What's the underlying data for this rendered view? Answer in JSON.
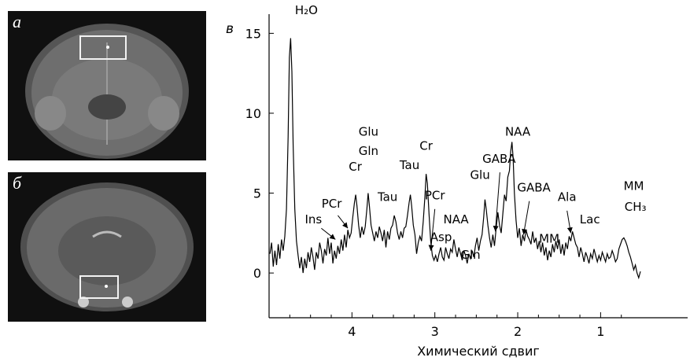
{
  "panels": {
    "a": {
      "letter": "а"
    },
    "b": {
      "letter": "б"
    }
  },
  "chart_data": {
    "type": "line",
    "panel_letter": "в",
    "xlabel": "Химический сдвиг",
    "ylabel": "",
    "x_reversed": true,
    "xlim": [
      5.0,
      -0.05
    ],
    "ylim": [
      -2.8,
      16.2
    ],
    "x_ticks": [
      4,
      3,
      2,
      1
    ],
    "y_ticks": [
      0,
      5,
      10,
      15
    ],
    "grid": false,
    "series": [
      {
        "color": "#000000",
        "points": [
          [
            4.99,
            1.2
          ],
          [
            4.97,
            1.9
          ],
          [
            4.95,
            0.4
          ],
          [
            4.93,
            1.4
          ],
          [
            4.91,
            0.5
          ],
          [
            4.89,
            1.8
          ],
          [
            4.87,
            0.9
          ],
          [
            4.85,
            2.1
          ],
          [
            4.83,
            1.4
          ],
          [
            4.81,
            2.3
          ],
          [
            4.79,
            4.0
          ],
          [
            4.77,
            8.5
          ],
          [
            4.755,
            13.5
          ],
          [
            4.74,
            14.7
          ],
          [
            4.725,
            12.6
          ],
          [
            4.71,
            8.0
          ],
          [
            4.69,
            4.0
          ],
          [
            4.67,
            2.0
          ],
          [
            4.65,
            1.1
          ],
          [
            4.63,
            0.3
          ],
          [
            4.61,
            1.0
          ],
          [
            4.59,
            0.0
          ],
          [
            4.57,
            0.9
          ],
          [
            4.55,
            0.3
          ],
          [
            4.53,
            1.3
          ],
          [
            4.51,
            0.7
          ],
          [
            4.49,
            1.6
          ],
          [
            4.47,
            1.0
          ],
          [
            4.45,
            0.2
          ],
          [
            4.43,
            1.3
          ],
          [
            4.41,
            0.9
          ],
          [
            4.39,
            1.9
          ],
          [
            4.37,
            1.4
          ],
          [
            4.35,
            0.6
          ],
          [
            4.33,
            1.5
          ],
          [
            4.31,
            1.1
          ],
          [
            4.29,
            2.2
          ],
          [
            4.27,
            1.2
          ],
          [
            4.25,
            1.9
          ],
          [
            4.23,
            0.6
          ],
          [
            4.21,
            1.4
          ],
          [
            4.19,
            0.9
          ],
          [
            4.17,
            1.7
          ],
          [
            4.15,
            1.2
          ],
          [
            4.13,
            2.1
          ],
          [
            4.11,
            1.4
          ],
          [
            4.09,
            2.4
          ],
          [
            4.07,
            1.6
          ],
          [
            4.05,
            2.7
          ],
          [
            4.03,
            2.2
          ],
          [
            4.01,
            2.5
          ],
          [
            3.99,
            3.5
          ],
          [
            3.97,
            4.4
          ],
          [
            3.955,
            4.9
          ],
          [
            3.94,
            4.2
          ],
          [
            3.92,
            3.0
          ],
          [
            3.9,
            2.2
          ],
          [
            3.88,
            2.9
          ],
          [
            3.86,
            2.4
          ],
          [
            3.84,
            2.9
          ],
          [
            3.82,
            4.0
          ],
          [
            3.805,
            5.0
          ],
          [
            3.79,
            4.2
          ],
          [
            3.77,
            3.0
          ],
          [
            3.75,
            2.5
          ],
          [
            3.73,
            2.0
          ],
          [
            3.71,
            2.6
          ],
          [
            3.69,
            2.2
          ],
          [
            3.67,
            2.9
          ],
          [
            3.65,
            2.5
          ],
          [
            3.63,
            2.0
          ],
          [
            3.61,
            2.7
          ],
          [
            3.59,
            1.6
          ],
          [
            3.57,
            2.6
          ],
          [
            3.55,
            2.1
          ],
          [
            3.53,
            2.8
          ],
          [
            3.51,
            3.0
          ],
          [
            3.49,
            3.6
          ],
          [
            3.47,
            3.2
          ],
          [
            3.45,
            2.5
          ],
          [
            3.43,
            2.1
          ],
          [
            3.41,
            2.6
          ],
          [
            3.39,
            2.2
          ],
          [
            3.37,
            2.8
          ],
          [
            3.35,
            2.9
          ],
          [
            3.33,
            3.6
          ],
          [
            3.31,
            4.4
          ],
          [
            3.295,
            4.9
          ],
          [
            3.28,
            4.2
          ],
          [
            3.26,
            3.0
          ],
          [
            3.24,
            2.4
          ],
          [
            3.22,
            1.2
          ],
          [
            3.2,
            1.9
          ],
          [
            3.18,
            2.3
          ],
          [
            3.16,
            2.0
          ],
          [
            3.14,
            3.2
          ],
          [
            3.12,
            4.8
          ],
          [
            3.105,
            6.2
          ],
          [
            3.09,
            5.6
          ],
          [
            3.07,
            3.7
          ],
          [
            3.05,
            2.0
          ],
          [
            3.03,
            1.1
          ],
          [
            3.01,
            0.8
          ],
          [
            2.99,
            1.1
          ],
          [
            2.97,
            0.7
          ],
          [
            2.95,
            1.2
          ],
          [
            2.93,
            1.6
          ],
          [
            2.91,
            1.0
          ],
          [
            2.89,
            0.8
          ],
          [
            2.87,
            1.6
          ],
          [
            2.85,
            1.2
          ],
          [
            2.83,
            0.9
          ],
          [
            2.81,
            1.5
          ],
          [
            2.79,
            1.3
          ],
          [
            2.77,
            2.1
          ],
          [
            2.75,
            1.5
          ],
          [
            2.73,
            1.0
          ],
          [
            2.71,
            1.6
          ],
          [
            2.69,
            1.2
          ],
          [
            2.67,
            0.8
          ],
          [
            2.65,
            1.4
          ],
          [
            2.63,
            1.1
          ],
          [
            2.61,
            0.6
          ],
          [
            2.59,
            1.2
          ],
          [
            2.57,
            0.9
          ],
          [
            2.55,
            1.4
          ],
          [
            2.53,
            1.0
          ],
          [
            2.51,
            1.7
          ],
          [
            2.49,
            2.2
          ],
          [
            2.47,
            1.4
          ],
          [
            2.45,
            2.0
          ],
          [
            2.43,
            2.4
          ],
          [
            2.41,
            3.5
          ],
          [
            2.395,
            4.6
          ],
          [
            2.38,
            4.0
          ],
          [
            2.36,
            3.0
          ],
          [
            2.34,
            2.2
          ],
          [
            2.32,
            1.6
          ],
          [
            2.3,
            2.4
          ],
          [
            2.28,
            1.7
          ],
          [
            2.26,
            2.8
          ],
          [
            2.24,
            3.8
          ],
          [
            2.22,
            3.0
          ],
          [
            2.2,
            2.5
          ],
          [
            2.18,
            3.7
          ],
          [
            2.16,
            4.9
          ],
          [
            2.14,
            4.5
          ],
          [
            2.12,
            6.0
          ],
          [
            2.1,
            6.4
          ],
          [
            2.085,
            7.6
          ],
          [
            2.07,
            8.2
          ],
          [
            2.055,
            7.2
          ],
          [
            2.04,
            5.0
          ],
          [
            2.02,
            3.3
          ],
          [
            2.0,
            2.2
          ],
          [
            1.98,
            2.8
          ],
          [
            1.96,
            1.7
          ],
          [
            1.94,
            2.4
          ],
          [
            1.92,
            2.0
          ],
          [
            1.9,
            2.7
          ],
          [
            1.88,
            2.3
          ],
          [
            1.86,
            2.1
          ],
          [
            1.84,
            1.8
          ],
          [
            1.82,
            2.6
          ],
          [
            1.8,
            1.9
          ],
          [
            1.78,
            2.2
          ],
          [
            1.76,
            1.5
          ],
          [
            1.74,
            2.0
          ],
          [
            1.72,
            1.3
          ],
          [
            1.7,
            1.9
          ],
          [
            1.68,
            1.1
          ],
          [
            1.66,
            1.6
          ],
          [
            1.64,
            0.8
          ],
          [
            1.62,
            1.4
          ],
          [
            1.6,
            1.0
          ],
          [
            1.58,
            1.8
          ],
          [
            1.56,
            1.3
          ],
          [
            1.54,
            2.0
          ],
          [
            1.52,
            1.5
          ],
          [
            1.5,
            2.1
          ],
          [
            1.48,
            1.2
          ],
          [
            1.46,
            1.8
          ],
          [
            1.44,
            1.1
          ],
          [
            1.42,
            1.9
          ],
          [
            1.4,
            1.5
          ],
          [
            1.38,
            2.3
          ],
          [
            1.36,
            2.0
          ],
          [
            1.34,
            2.6
          ],
          [
            1.32,
            2.2
          ],
          [
            1.3,
            1.8
          ],
          [
            1.28,
            1.6
          ],
          [
            1.26,
            1.0
          ],
          [
            1.24,
            1.6
          ],
          [
            1.22,
            1.2
          ],
          [
            1.2,
            0.7
          ],
          [
            1.18,
            1.3
          ],
          [
            1.16,
            1.0
          ],
          [
            1.14,
            0.6
          ],
          [
            1.12,
            1.2
          ],
          [
            1.1,
            0.9
          ],
          [
            1.08,
            1.5
          ],
          [
            1.06,
            1.1
          ],
          [
            1.04,
            0.7
          ],
          [
            1.02,
            1.1
          ],
          [
            1.0,
            0.8
          ],
          [
            0.98,
            1.3
          ],
          [
            0.96,
            1.0
          ],
          [
            0.94,
            0.7
          ],
          [
            0.92,
            1.2
          ],
          [
            0.9,
            0.9
          ],
          [
            0.88,
            1.0
          ],
          [
            0.86,
            1.4
          ],
          [
            0.84,
            1.1
          ],
          [
            0.82,
            0.7
          ],
          [
            0.8,
            0.9
          ],
          [
            0.78,
            1.5
          ],
          [
            0.76,
            1.8
          ],
          [
            0.74,
            2.1
          ],
          [
            0.72,
            2.2
          ],
          [
            0.7,
            2.0
          ],
          [
            0.68,
            1.7
          ],
          [
            0.66,
            1.3
          ],
          [
            0.64,
            1.0
          ],
          [
            0.62,
            0.6
          ],
          [
            0.6,
            0.2
          ],
          [
            0.58,
            0.5
          ],
          [
            0.56,
            0.0
          ],
          [
            0.54,
            -0.3
          ],
          [
            0.52,
            0.1
          ]
        ]
      }
    ],
    "annotations": [
      {
        "label": "H₂O",
        "pos": [
          4.55,
          16.2
        ]
      },
      {
        "label": "Cr",
        "pos": [
          3.96,
          6.4
        ]
      },
      {
        "label": "Glu",
        "pos": [
          3.8,
          8.6
        ]
      },
      {
        "label": "Gln",
        "pos": [
          3.8,
          7.4
        ]
      },
      {
        "label": "Tau",
        "pos": [
          3.57,
          4.5
        ]
      },
      {
        "label": "Tau",
        "pos": [
          3.305,
          6.5
        ]
      },
      {
        "label": "Cr",
        "pos": [
          3.105,
          7.7
        ]
      },
      {
        "label": "Ins",
        "pos": [
          4.465,
          3.1
        ]
      },
      {
        "label": "PCr",
        "pos": [
          4.245,
          4.1
        ]
      },
      {
        "label": "PCr",
        "pos": [
          3.0,
          4.6
        ]
      },
      {
        "label": "NAA",
        "pos": [
          2.745,
          3.1
        ]
      },
      {
        "label": "Asp",
        "pos": [
          2.925,
          2.0
        ]
      },
      {
        "label": "Gln",
        "pos": [
          2.57,
          0.9
        ]
      },
      {
        "label": "Glu",
        "pos": [
          2.455,
          5.9
        ]
      },
      {
        "label": "GABA",
        "pos": [
          2.225,
          6.9
        ]
      },
      {
        "label": "NAA",
        "pos": [
          2.0,
          8.6
        ]
      },
      {
        "label": "GABA",
        "pos": [
          1.805,
          5.1
        ]
      },
      {
        "label": "Ala",
        "pos": [
          1.405,
          4.5
        ]
      },
      {
        "label": "MM",
        "pos": [
          1.62,
          1.9
        ]
      },
      {
        "label": "Lac",
        "pos": [
          1.13,
          3.1
        ]
      },
      {
        "label": "MM",
        "pos": [
          0.6,
          5.2
        ]
      },
      {
        "label": "CH₃",
        "pos": [
          0.58,
          3.9
        ]
      }
    ],
    "arrows": [
      {
        "from": [
          4.37,
          2.8
        ],
        "to": [
          4.2,
          2.1
        ]
      },
      {
        "from": [
          4.17,
          3.6
        ],
        "to": [
          4.05,
          2.8
        ]
      },
      {
        "from": [
          3.0,
          4.0
        ],
        "to": [
          3.05,
          1.4
        ]
      },
      {
        "from": [
          2.215,
          6.3
        ],
        "to": [
          2.27,
          2.6
        ]
      },
      {
        "from": [
          1.86,
          4.5
        ],
        "to": [
          1.93,
          2.4
        ]
      },
      {
        "from": [
          1.405,
          3.9
        ],
        "to": [
          1.36,
          2.5
        ]
      }
    ]
  }
}
